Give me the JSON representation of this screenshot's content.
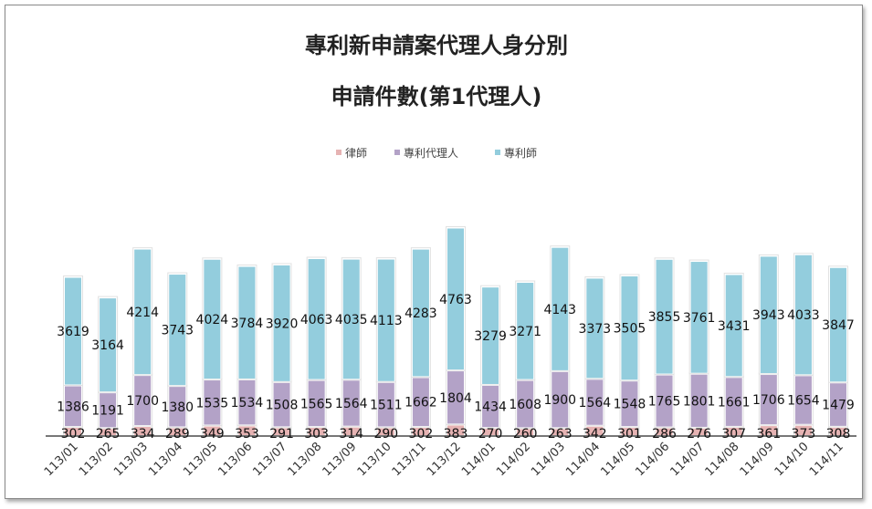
{
  "chart_data": {
    "type": "bar",
    "stacked": true,
    "title": [
      "專利新申請案代理人身分別",
      "申請件數(第1代理人)"
    ],
    "legend_position": "top",
    "grid": false,
    "categories": [
      "113/01",
      "113/02",
      "113/03",
      "113/04",
      "113/05",
      "113/06",
      "113/07",
      "113/08",
      "113/09",
      "113/10",
      "113/11",
      "113/12",
      "114/01",
      "114/02",
      "114/03",
      "114/04",
      "114/05",
      "114/06",
      "114/07",
      "114/08",
      "114/09",
      "114/10",
      "114/11"
    ],
    "series": [
      {
        "name": "律師",
        "color": "#e6b3b3",
        "values": [
          302,
          265,
          334,
          289,
          349,
          353,
          291,
          303,
          314,
          290,
          302,
          383,
          270,
          260,
          263,
          342,
          301,
          286,
          276,
          307,
          361,
          373,
          308
        ]
      },
      {
        "name": "專利代理人",
        "color": "#b3a2c7",
        "values": [
          1386,
          1191,
          1700,
          1380,
          1535,
          1534,
          1508,
          1565,
          1564,
          1511,
          1662,
          1804,
          1434,
          1608,
          1900,
          1564,
          1548,
          1765,
          1801,
          1661,
          1706,
          1654,
          1479
        ]
      },
      {
        "name": "專利師",
        "color": "#93cddd",
        "values": [
          3619,
          3164,
          4214,
          3743,
          4024,
          3784,
          3920,
          4063,
          4035,
          4113,
          4283,
          4763,
          3279,
          3271,
          4143,
          3373,
          3505,
          3855,
          3761,
          3431,
          3943,
          4033,
          3847
        ]
      }
    ],
    "ylim": [
      0,
      7000
    ]
  }
}
